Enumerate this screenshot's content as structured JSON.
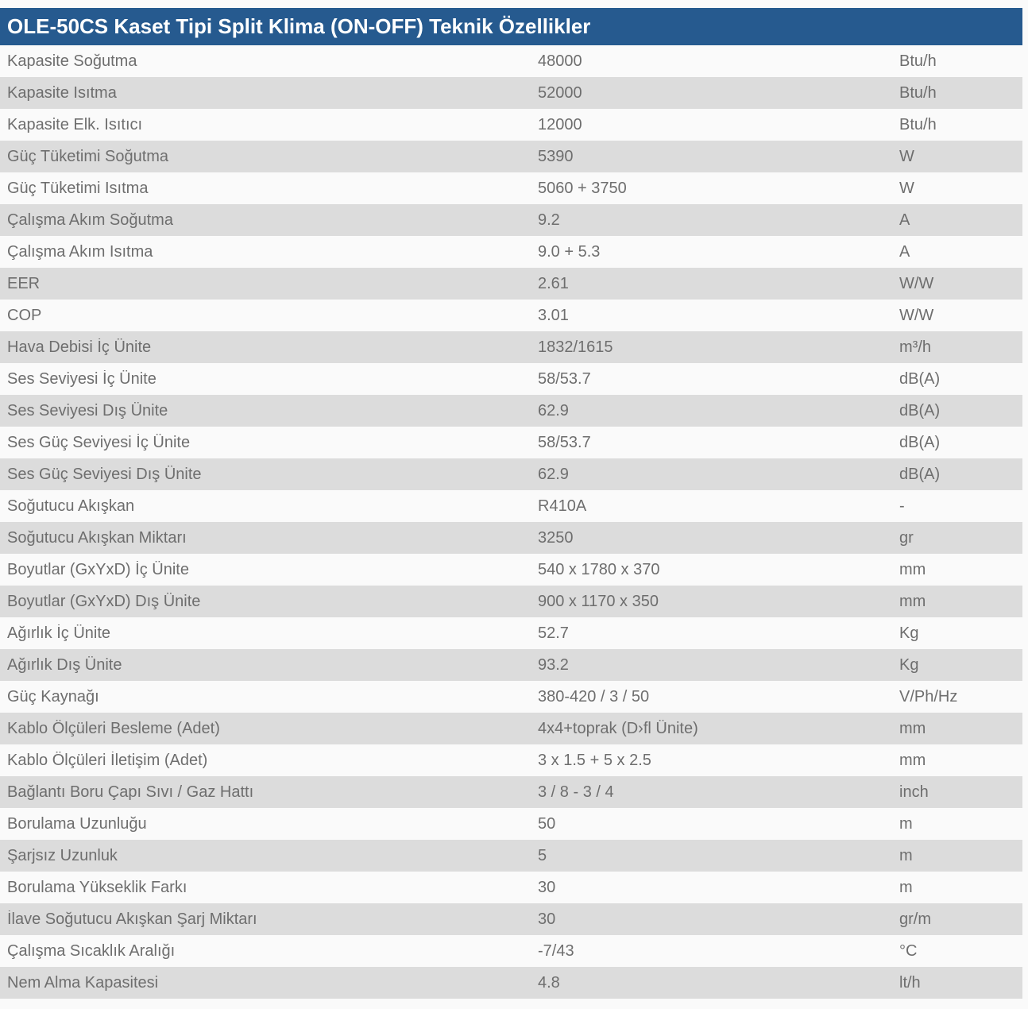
{
  "header": {
    "title": "OLE-50CS Kaset Tipi Split Klima (ON-OFF) Teknik Özellikler"
  },
  "colors": {
    "header_bg": "#265a8f",
    "header_text": "#ffffff",
    "row_bg": "#fafafa",
    "row_alt_bg": "#dcdcdc",
    "text": "#6e6e6e"
  },
  "table": {
    "columns": [
      "property",
      "value",
      "unit"
    ],
    "rows": [
      {
        "label": "Kapasite Soğutma",
        "value": "48000",
        "unit": "Btu/h"
      },
      {
        "label": "Kapasite Isıtma",
        "value": "52000",
        "unit": "Btu/h"
      },
      {
        "label": "Kapasite Elk. Isıtıcı",
        "value": "12000",
        "unit": "Btu/h"
      },
      {
        "label": "Güç Tüketimi Soğutma",
        "value": "5390",
        "unit": "W"
      },
      {
        "label": "Güç Tüketimi Isıtma",
        "value": "5060 + 3750",
        "unit": "W"
      },
      {
        "label": "Çalışma Akım Soğutma",
        "value": "9.2",
        "unit": "A"
      },
      {
        "label": "Çalışma Akım Isıtma",
        "value": "9.0 + 5.3",
        "unit": "A"
      },
      {
        "label": "EER",
        "value": "2.61",
        "unit": "W/W"
      },
      {
        "label": "COP",
        "value": "3.01",
        "unit": "W/W"
      },
      {
        "label": "Hava Debisi İç Ünite",
        "value": "1832/1615",
        "unit": "m³/h"
      },
      {
        "label": "Ses Seviyesi İç Ünite",
        "value": "58/53.7",
        "unit": "dB(A)"
      },
      {
        "label": "Ses Seviyesi Dış Ünite",
        "value": "62.9",
        "unit": "dB(A)"
      },
      {
        "label": "Ses Güç Seviyesi İç Ünite",
        "value": "58/53.7",
        "unit": "dB(A)"
      },
      {
        "label": "Ses Güç Seviyesi Dış Ünite",
        "value": "62.9",
        "unit": "dB(A)"
      },
      {
        "label": "Soğutucu Akışkan",
        "value": "R410A",
        "unit": "-"
      },
      {
        "label": "Soğutucu Akışkan Miktarı",
        "value": "3250",
        "unit": "gr"
      },
      {
        "label": "Boyutlar (GxYxD) İç Ünite",
        "value": "540 x 1780 x 370",
        "unit": "mm"
      },
      {
        "label": "Boyutlar (GxYxD) Dış Ünite",
        "value": "900 x 1170 x 350",
        "unit": "mm"
      },
      {
        "label": "Ağırlık İç Ünite",
        "value": "52.7",
        "unit": "Kg"
      },
      {
        "label": "Ağırlık Dış Ünite",
        "value": "93.2",
        "unit": "Kg"
      },
      {
        "label": "Güç Kaynağı",
        "value": "380-420 / 3 / 50",
        "unit": "V/Ph/Hz"
      },
      {
        "label": "Kablo Ölçüleri Besleme (Adet)",
        "value": "4x4+toprak (D›fl Ünite)",
        "unit": "mm"
      },
      {
        "label": "Kablo Ölçüleri İletişim (Adet)",
        "value": "3 x 1.5 + 5 x 2.5",
        "unit": "mm"
      },
      {
        "label": "Bağlantı Boru Çapı Sıvı / Gaz Hattı",
        "value": "3 / 8 - 3 / 4",
        "unit": "inch"
      },
      {
        "label": "Borulama Uzunluğu",
        "value": "50",
        "unit": "m"
      },
      {
        "label": "Şarjsız Uzunluk",
        "value": "5",
        "unit": "m"
      },
      {
        "label": "Borulama Yükseklik Farkı",
        "value": "30",
        "unit": "m"
      },
      {
        "label": "İlave Soğutucu Akışkan Şarj Miktarı",
        "value": "30",
        "unit": "gr/m"
      },
      {
        "label": "Çalışma Sıcaklık Aralığı",
        "value": "-7/43",
        "unit": "°C"
      },
      {
        "label": "Nem Alma Kapasitesi",
        "value": "4.8",
        "unit": "lt/h"
      }
    ]
  }
}
